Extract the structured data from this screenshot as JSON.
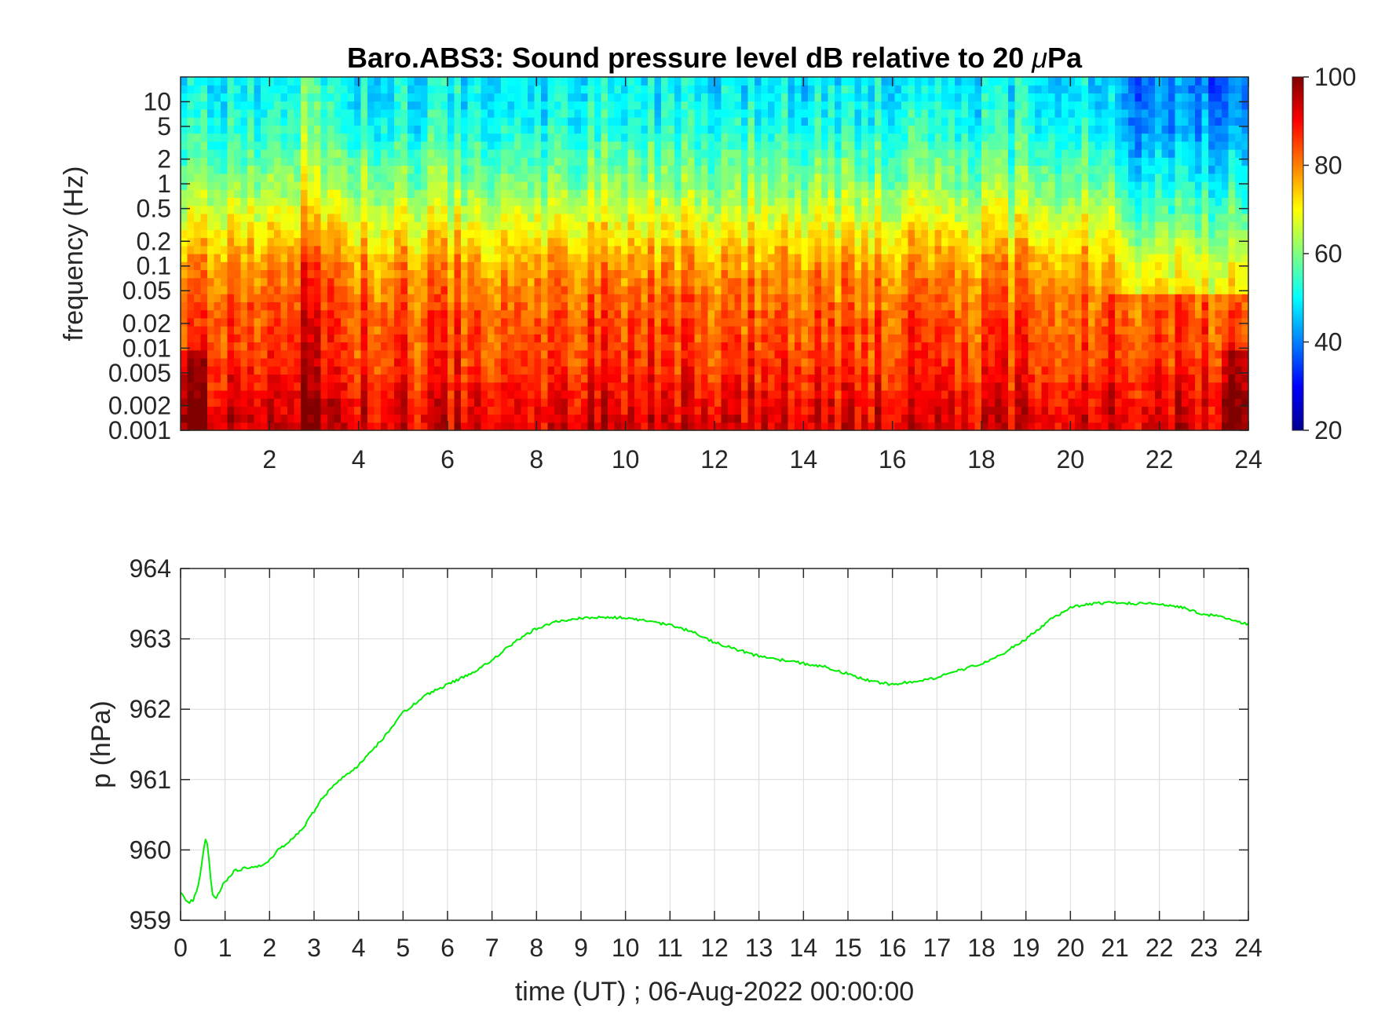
{
  "colors": {
    "background": "#ffffff",
    "axis": "#262626",
    "grid": "#d9d9d9",
    "pressure_line": "#00ee00",
    "colormap": "jet"
  },
  "chart_data": [
    {
      "type": "heatmap",
      "colormap": "jet",
      "title": "Baro.ABS3: Sound pressure level dB relative to 20 μPa",
      "title_prefix": "Baro.ABS3: Sound pressure level dB relative to 20 ",
      "title_mu": "μ",
      "title_suffix": "Pa",
      "xlabel": "",
      "ylabel": "frequency (Hz)",
      "xlim": [
        0,
        24
      ],
      "x_ticks": [
        2,
        4,
        6,
        8,
        10,
        12,
        14,
        16,
        18,
        20,
        22,
        24
      ],
      "y_scale": "log",
      "ylim": [
        0.001,
        20
      ],
      "y_ticks": [
        0.001,
        0.002,
        0.005,
        0.01,
        0.02,
        0.05,
        0.1,
        0.2,
        0.5,
        1,
        2,
        5,
        10
      ],
      "y_tick_labels": [
        "0.001",
        "0.002",
        "0.005",
        "0.01",
        "0.02",
        "0.05",
        "0.1",
        "0.2",
        "0.5",
        "1",
        "2",
        "5",
        "10"
      ],
      "colorbar": {
        "range": [
          20,
          100
        ],
        "ticks": [
          20,
          40,
          60,
          80,
          100
        ],
        "placement": "right"
      },
      "level_profile": {
        "frequency_hz": [
          0.001,
          0.002,
          0.005,
          0.01,
          0.02,
          0.05,
          0.1,
          0.2,
          0.5,
          1,
          2,
          5,
          10,
          20
        ],
        "typical_db": [
          93,
          91,
          87,
          85,
          84,
          81,
          78,
          73,
          66,
          61,
          57,
          52,
          50,
          49
        ]
      },
      "features": [
        {
          "time_h": 2.9,
          "description": "broadband burst"
        },
        {
          "time_h": 20.5,
          "description": "quiet period begins at high frequencies"
        }
      ]
    },
    {
      "type": "line",
      "title": "",
      "xlabel": "time (UT) ; 06-Aug-2022 00:00:00",
      "ylabel": "p (hPa)",
      "xlim": [
        0,
        24
      ],
      "ylim": [
        959,
        964
      ],
      "x_ticks": [
        0,
        1,
        2,
        3,
        4,
        5,
        6,
        7,
        8,
        9,
        10,
        11,
        12,
        13,
        14,
        15,
        16,
        17,
        18,
        19,
        20,
        21,
        22,
        23,
        24
      ],
      "y_ticks": [
        959,
        960,
        961,
        962,
        963,
        964
      ],
      "grid": true,
      "series": [
        {
          "color": "#00ee00",
          "x": [
            0,
            0.1,
            0.2,
            0.3,
            0.4,
            0.5,
            0.55,
            0.6,
            0.65,
            0.7,
            0.8,
            0.9,
            1.0,
            1.2,
            1.5,
            1.8,
            2.0,
            2.2,
            2.5,
            2.8,
            3.0,
            3.2,
            3.5,
            4.0,
            4.5,
            5.0,
            5.5,
            6.0,
            6.5,
            7.0,
            7.5,
            8.0,
            8.5,
            9.0,
            9.5,
            10.0,
            10.5,
            11.0,
            11.5,
            12.0,
            12.5,
            13.0,
            13.5,
            14.0,
            14.5,
            15.0,
            15.5,
            16.0,
            16.5,
            17.0,
            17.5,
            18.0,
            18.5,
            19.0,
            19.5,
            20.0,
            20.5,
            21.0,
            21.5,
            22.0,
            22.5,
            23.0,
            23.5,
            24.0
          ],
          "y": [
            959.4,
            959.3,
            959.25,
            959.3,
            959.5,
            959.9,
            960.15,
            960.1,
            959.8,
            959.4,
            959.3,
            959.45,
            959.55,
            959.7,
            959.75,
            959.78,
            959.85,
            960.0,
            960.15,
            960.35,
            960.55,
            960.75,
            960.95,
            961.2,
            961.55,
            961.95,
            962.2,
            962.35,
            962.5,
            962.7,
            962.95,
            963.15,
            963.25,
            963.3,
            963.3,
            963.3,
            963.25,
            963.2,
            963.1,
            962.95,
            962.85,
            962.75,
            962.7,
            962.65,
            962.6,
            962.5,
            962.4,
            962.35,
            962.4,
            962.45,
            962.55,
            962.65,
            962.8,
            963.0,
            963.25,
            963.45,
            963.5,
            963.52,
            963.5,
            963.5,
            963.45,
            963.35,
            963.3,
            963.2
          ]
        }
      ]
    }
  ]
}
